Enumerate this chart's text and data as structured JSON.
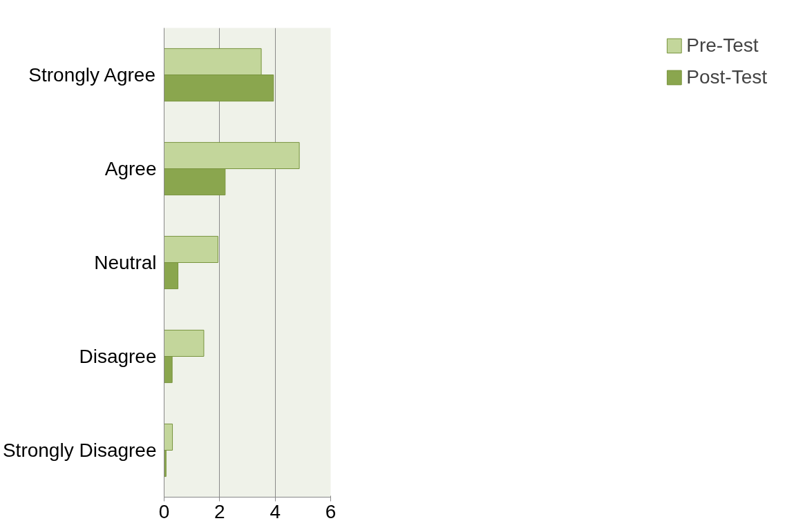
{
  "chart_data": {
    "type": "bar",
    "orientation": "horizontal",
    "categories": [
      "Strongly Agree",
      "Agree",
      "Neutral",
      "Disagree",
      "Strongly Disagree"
    ],
    "series": [
      {
        "name": "Pre-Test",
        "color": "#c3d69b",
        "values": [
          3.5,
          4.87,
          1.94,
          1.43,
          0.3
        ]
      },
      {
        "name": "Post-Test",
        "color": "#8aa64e",
        "values": [
          3.94,
          2.2,
          0.5,
          0.29,
          0.07
        ]
      }
    ],
    "xlim": [
      0,
      6
    ],
    "xticks": [
      0,
      2,
      4,
      6
    ],
    "grid": "x",
    "legend": "right"
  }
}
